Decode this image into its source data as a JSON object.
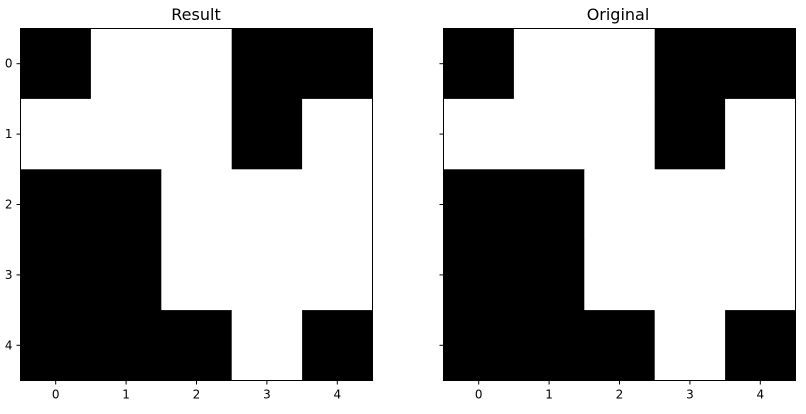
{
  "chart_data": [
    {
      "type": "heatmap",
      "title": "Result",
      "colormap": [
        "#ffffff",
        "#000000"
      ],
      "x_ticks": [
        "0",
        "1",
        "2",
        "3",
        "4"
      ],
      "y_ticks": [
        "0",
        "1",
        "2",
        "3",
        "4"
      ],
      "values": [
        [
          1,
          0,
          0,
          1,
          1
        ],
        [
          0,
          0,
          0,
          1,
          0
        ],
        [
          1,
          1,
          0,
          0,
          0
        ],
        [
          1,
          1,
          0,
          0,
          0
        ],
        [
          1,
          1,
          1,
          0,
          1
        ]
      ]
    },
    {
      "type": "heatmap",
      "title": "Original",
      "colormap": [
        "#ffffff",
        "#000000"
      ],
      "x_ticks": [
        "0",
        "1",
        "2",
        "3",
        "4"
      ],
      "y_ticks": [
        "0",
        "1",
        "2",
        "3",
        "4"
      ],
      "values": [
        [
          1,
          0,
          0,
          1,
          1
        ],
        [
          0,
          0,
          0,
          1,
          0
        ],
        [
          1,
          1,
          0,
          0,
          0
        ],
        [
          1,
          1,
          0,
          0,
          0
        ],
        [
          1,
          1,
          1,
          0,
          1
        ]
      ]
    }
  ]
}
